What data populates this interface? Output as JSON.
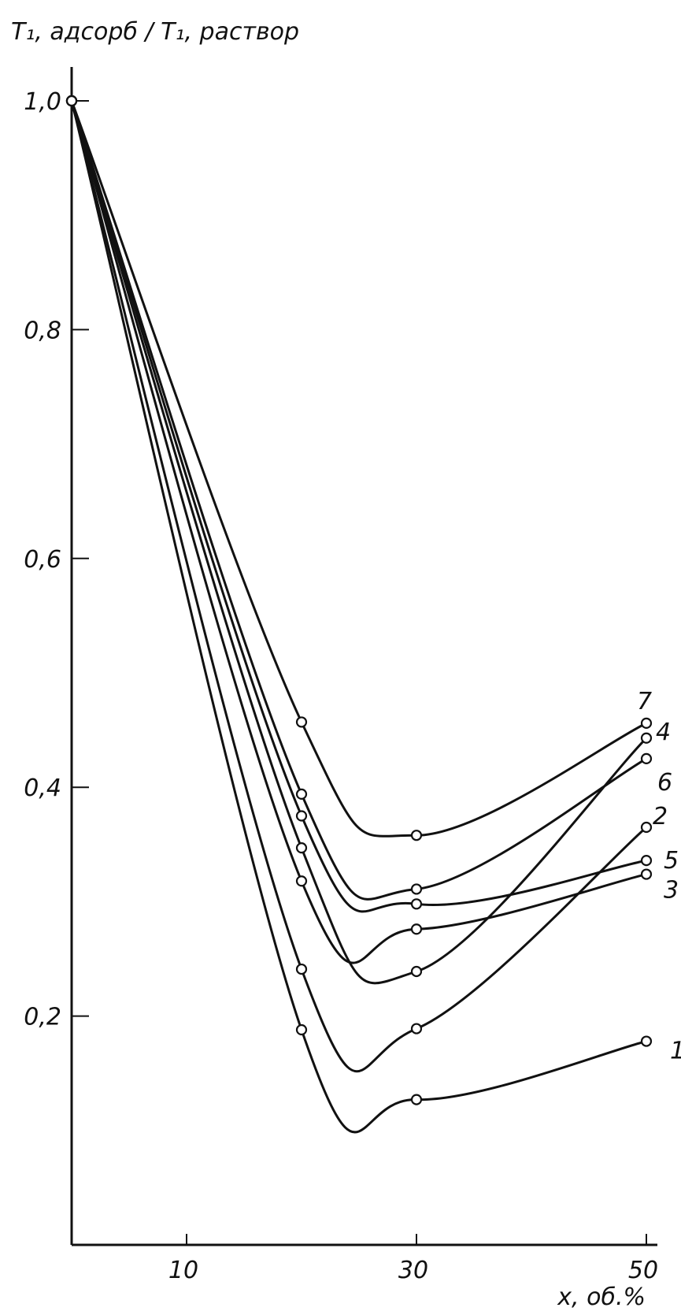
{
  "chart_data": {
    "type": "line",
    "ylabel": "T₁, адсорб / T₁, раствор",
    "xlabel": "x, об.%",
    "xlim": [
      0,
      51.5
    ],
    "ylim": [
      0,
      1.04
    ],
    "x_ticks": [
      10,
      30,
      50
    ],
    "x_tick_labels": [
      "10",
      "30",
      "50"
    ],
    "y_ticks": [
      0.2,
      0.4,
      0.6,
      0.8,
      1.0
    ],
    "y_tick_labels": [
      "0,2",
      "0,4",
      "0,6",
      "0,8",
      "1,0"
    ],
    "grid": false,
    "series": [
      {
        "name": "1",
        "x": [
          0,
          20,
          30,
          50
        ],
        "y": [
          1.0,
          0.188,
          0.127,
          0.178
        ]
      },
      {
        "name": "2",
        "x": [
          0,
          20,
          30,
          50
        ],
        "y": [
          1.0,
          0.241,
          0.189,
          0.365
        ]
      },
      {
        "name": "3",
        "x": [
          0,
          20,
          30,
          50
        ],
        "y": [
          1.0,
          0.318,
          0.276,
          0.324
        ]
      },
      {
        "name": "4",
        "x": [
          0,
          20,
          30,
          50
        ],
        "y": [
          1.0,
          0.347,
          0.239,
          0.443
        ]
      },
      {
        "name": "5",
        "x": [
          0,
          20,
          30,
          50
        ],
        "y": [
          1.0,
          0.375,
          0.298,
          0.336
        ]
      },
      {
        "name": "6",
        "x": [
          0,
          20,
          30,
          50
        ],
        "y": [
          1.0,
          0.394,
          0.311,
          0.425
        ]
      },
      {
        "name": "7",
        "x": [
          0,
          20,
          30,
          50
        ],
        "y": [
          1.0,
          0.457,
          0.358,
          0.456
        ]
      }
    ]
  }
}
